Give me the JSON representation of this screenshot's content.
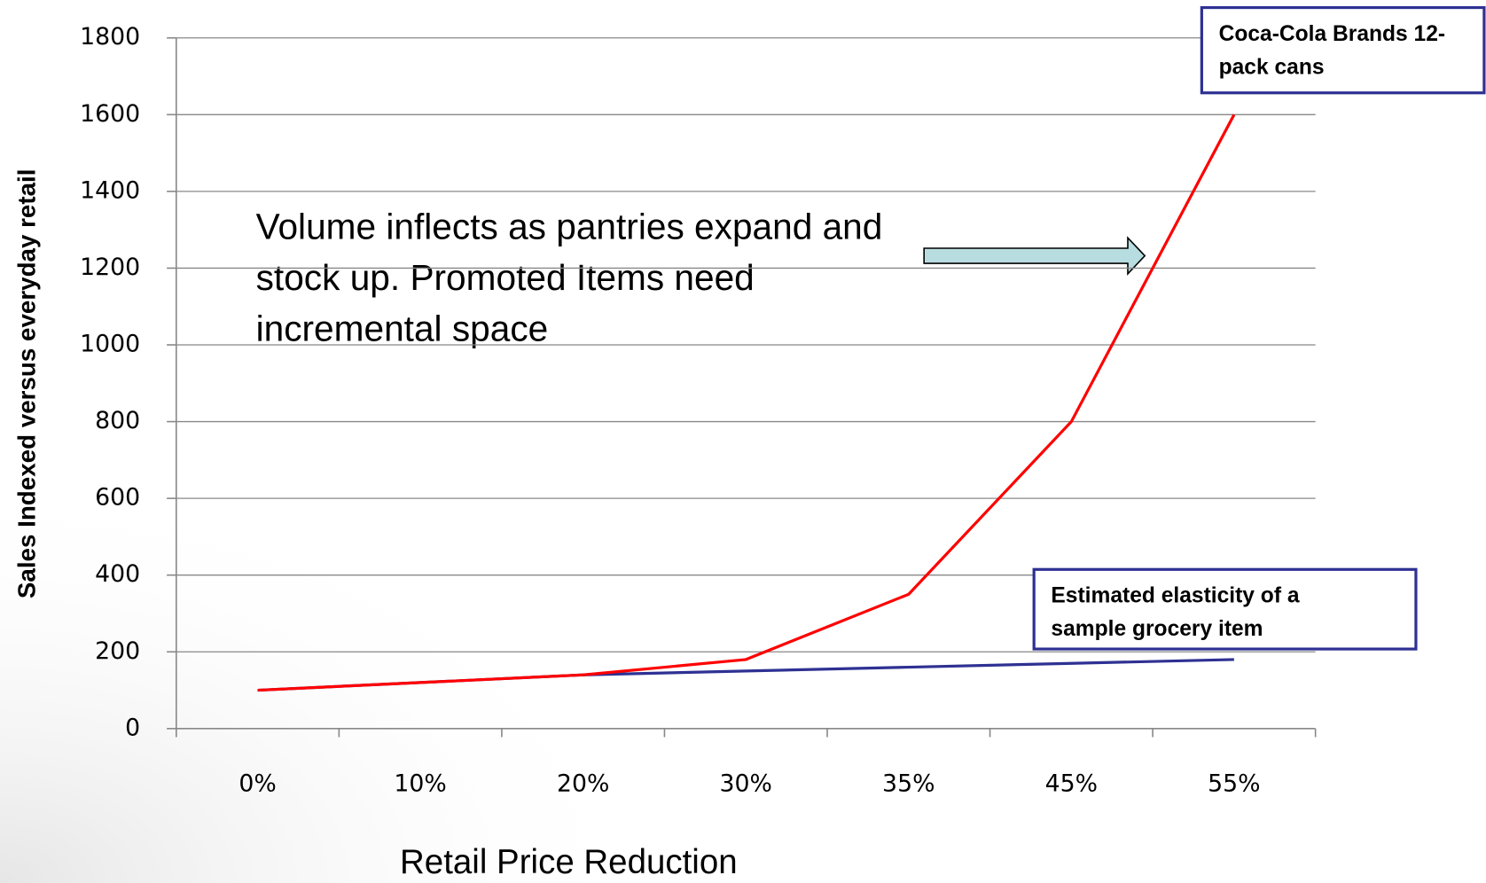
{
  "chart_data": {
    "type": "line",
    "x_label": "Retail Price Reduction",
    "y_label": "Sales Indexed versus everyday retail",
    "annotation": "Volume inflects as pantries expand and stock up.  Promoted Items need incremental space",
    "categories": [
      "0%",
      "10%",
      "20%",
      "30%",
      "35%",
      "45%",
      "55%"
    ],
    "series": [
      {
        "name": "Coca-Cola Brands 12-pack cans",
        "color": "#ff0000",
        "values": [
          100,
          120,
          140,
          180,
          350,
          800,
          1600
        ]
      },
      {
        "name": "Estimated elasticity of a sample grocery item",
        "color": "#2e3192",
        "values": [
          100,
          120,
          140,
          150,
          160,
          170,
          180
        ]
      }
    ],
    "ylim": [
      0,
      1800
    ],
    "yticks": [
      0,
      200,
      400,
      600,
      800,
      1000,
      1200,
      1400,
      1600,
      1800
    ],
    "grid": true
  }
}
